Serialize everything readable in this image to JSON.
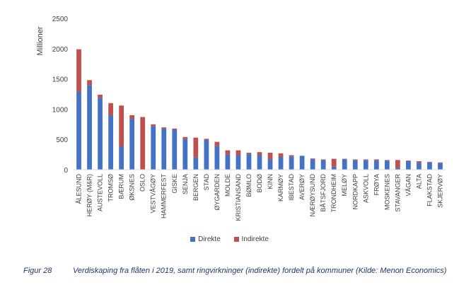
{
  "chart_data": {
    "type": "bar",
    "stacked": true,
    "ylabel": "Millioner",
    "ylim": [
      0,
      2500
    ],
    "yticks": [
      0,
      500,
      1000,
      1500,
      2000,
      2500
    ],
    "grid": false,
    "legend_position": "bottom",
    "categories": [
      "ÅLESUND",
      "HERØY (M&R)",
      "AUSTEVOLL",
      "TROMSØ",
      "BÆRUM",
      "ØKSNES",
      "OSLO",
      "VESTVÅGØY",
      "HAMMERFEST",
      "GISKE",
      "SENJA",
      "BERGEN",
      "STAD",
      "ØYGARDEN",
      "MOLDE",
      "KRISTIANSAND",
      "BØMLO",
      "BODØ",
      "KINN",
      "KARMØY",
      "IBESTAD",
      "AVERØY",
      "NÆRØYSUND",
      "BÅTSFJORD",
      "TRONDHEIM",
      "MELØY",
      "NORDKAPP",
      "ASKVOLL",
      "FRØYA",
      "MOSKENES",
      "STAVANGER",
      "VÅGAN",
      "ALTA",
      "FLAKSTAD",
      "SKJERVØY"
    ],
    "series": [
      {
        "name": "Direkte",
        "color": "#4472c4",
        "values": [
          1290,
          1400,
          1190,
          900,
          380,
          840,
          0,
          720,
          680,
          660,
          510,
          200,
          490,
          390,
          250,
          240,
          260,
          240,
          170,
          210,
          220,
          230,
          170,
          160,
          50,
          170,
          160,
          160,
          150,
          150,
          30,
          140,
          110,
          120,
          110
        ]
      },
      {
        "name": "Indirekte",
        "color": "#c0504d",
        "values": [
          700,
          80,
          50,
          200,
          680,
          60,
          870,
          30,
          20,
          20,
          30,
          330,
          20,
          70,
          70,
          80,
          20,
          50,
          110,
          60,
          20,
          0,
          15,
          10,
          130,
          10,
          10,
          10,
          20,
          10,
          130,
          10,
          30,
          10,
          10
        ]
      }
    ]
  },
  "caption": {
    "label": "Figur 28",
    "text": "Verdiskaping fra flåten i 2019, samt ringvirkninger (indirekte) fordelt på kommuner (Kilde: Menon Economics)"
  }
}
